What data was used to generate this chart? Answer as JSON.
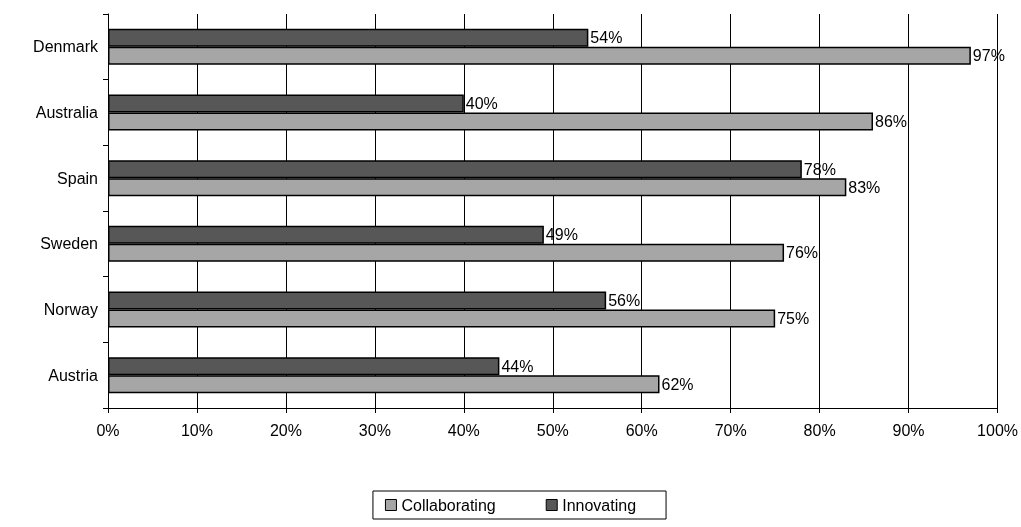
{
  "chart_data": {
    "type": "bar",
    "orientation": "horizontal",
    "categories": [
      "Denmark",
      "Australia",
      "Spain",
      "Sweden",
      "Norway",
      "Austria"
    ],
    "series": [
      {
        "name": "Innovating",
        "color": "#575757",
        "values": [
          54,
          40,
          78,
          49,
          56,
          44
        ],
        "value_labels": [
          "54%",
          "40%",
          "78%",
          "49%",
          "56%",
          "44%"
        ]
      },
      {
        "name": "Collaborating",
        "color": "#a6a6a6",
        "values": [
          97,
          86,
          83,
          76,
          75,
          62
        ],
        "value_labels": [
          "97%",
          "86%",
          "83%",
          "76%",
          "75%",
          "62%"
        ]
      }
    ],
    "xlim": [
      0,
      100
    ],
    "xticks": [
      {
        "value": 0,
        "label": "0%"
      },
      {
        "value": 10,
        "label": "10%"
      },
      {
        "value": 20,
        "label": "20%"
      },
      {
        "value": 30,
        "label": "30%"
      },
      {
        "value": 40,
        "label": "40%"
      },
      {
        "value": 50,
        "label": "50%"
      },
      {
        "value": 60,
        "label": "60%"
      },
      {
        "value": 70,
        "label": "70%"
      },
      {
        "value": 80,
        "label": "80%"
      },
      {
        "value": 90,
        "label": "90%"
      },
      {
        "value": 100,
        "label": "100%"
      }
    ],
    "grid": "x",
    "legend": "bottom"
  }
}
